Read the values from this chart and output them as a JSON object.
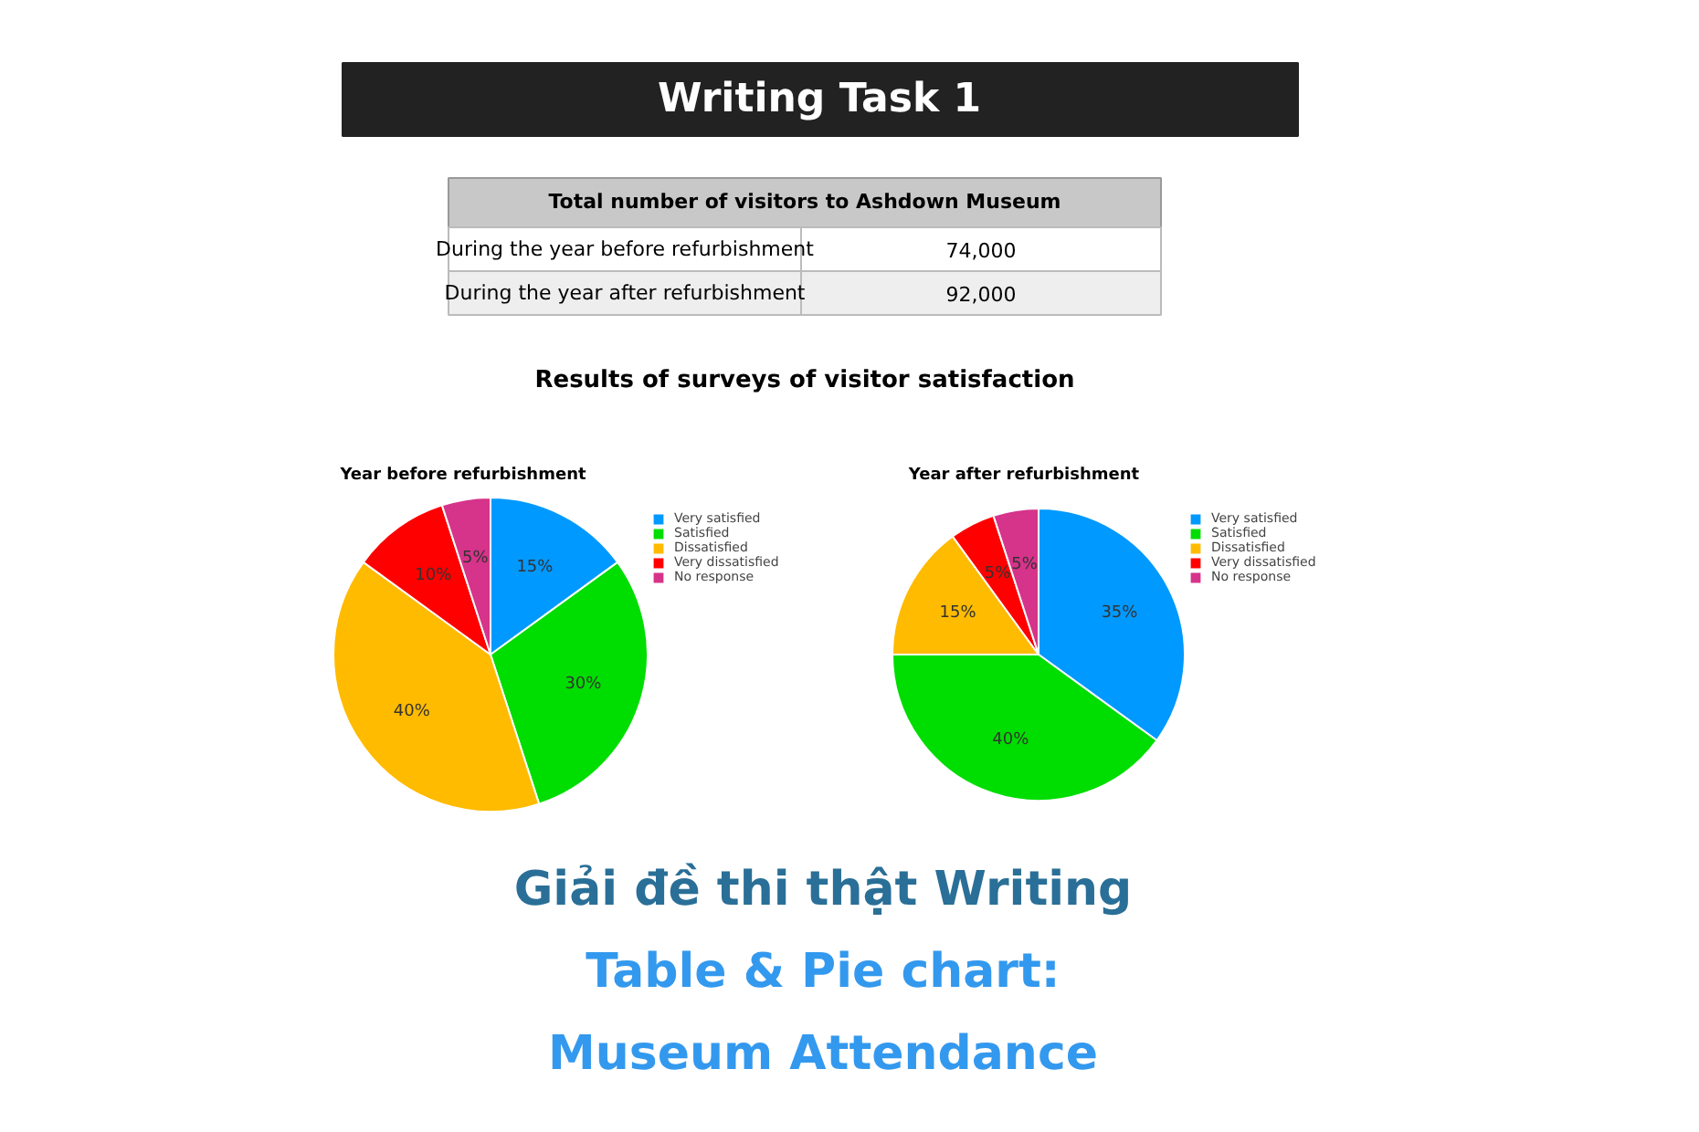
{
  "chart_data": [
    {
      "type": "other",
      "title": "Writing Task 1",
      "subtitle": "Total number of visitors to Ashdown Museum",
      "categories": [
        "During the year before refurbishment",
        "During the year after refurbishment"
      ],
      "values": [
        74000,
        92000
      ],
      "value_labels": [
        "74,000",
        "92,000"
      ],
      "annotations": [
        "Results of surveys of visitor satisfaction"
      ]
    },
    {
      "type": "pie",
      "title": "Year before refurbishment",
      "categories": [
        "Very satisfied",
        "Satisfied",
        "Dissatisfied",
        "Very dissatisfied",
        "No response"
      ],
      "values": [
        15,
        30,
        40,
        10,
        5
      ],
      "value_labels": [
        "15%",
        "30%",
        "40%",
        "10%",
        "5%"
      ],
      "colors": [
        "#0099ff",
        "#00dd00",
        "#ffbb00",
        "#ff0000",
        "#d6338a"
      ],
      "legend": "right"
    },
    {
      "type": "pie",
      "title": "Year after refurbishment",
      "categories": [
        "Very satisfied",
        "Satisfied",
        "Dissatisfied",
        "Very dissatisfied",
        "No response"
      ],
      "values": [
        35,
        40,
        15,
        5,
        5
      ],
      "value_labels": [
        "35%",
        "40%",
        "15%",
        "5%",
        "5%"
      ],
      "colors": [
        "#0099ff",
        "#00dd00",
        "#ffbb00",
        "#ff0000",
        "#d6338a"
      ],
      "legend": "right"
    },
    {
      "type": "other",
      "annotations": [
        "Giải đề thi thật Writing",
        "Table & Pie chart:",
        "Museum Attendance"
      ]
    }
  ]
}
